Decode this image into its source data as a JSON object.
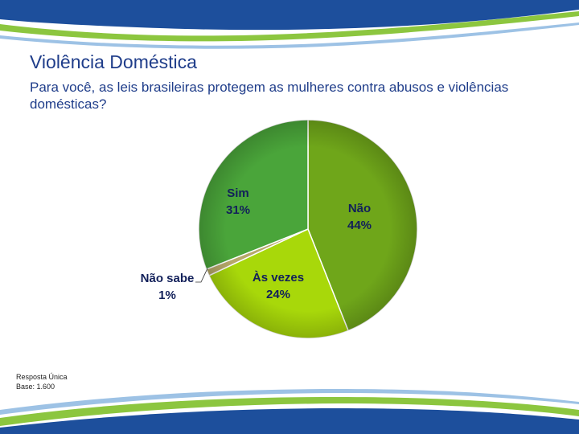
{
  "title": "Violência Doméstica",
  "subtitle": "Para você, as leis brasileiras protegem as mulheres contra abusos e violências domésticas?",
  "footnote": {
    "response_type": "Resposta Única",
    "base": "Base: 1.600"
  },
  "colors": {
    "title": "#1f3d8a",
    "label": "#12205a",
    "brand_blue": "#1d4f9c",
    "brand_green": "#8cc63f"
  },
  "chart_data": {
    "type": "pie",
    "slices": [
      {
        "name": "Não",
        "value": 44,
        "label": "44%",
        "color": "#6fa61a"
      },
      {
        "name": "Às vezes",
        "value": 24,
        "label": "24%",
        "color": "#a8d80a"
      },
      {
        "name": "Não sabe",
        "value": 1,
        "label": "1%",
        "color": "#b7a96a"
      },
      {
        "name": "Sim",
        "value": 31,
        "label": "31%",
        "color": "#4aa53a"
      }
    ],
    "start_angle_deg": 0,
    "direction": "clockwise",
    "legend": "none"
  }
}
